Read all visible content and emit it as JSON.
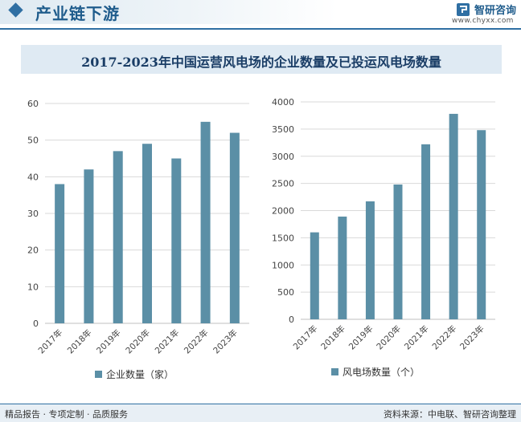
{
  "header": {
    "title": "产业链下游",
    "brand_name": "智研咨询",
    "brand_url": "www.chyxx.com"
  },
  "chart_title": "2017-2023年中国运营风电场的企业数量及已投运风电场数量",
  "footer": {
    "left": "精品报告 · 专项定制 · 品质服务",
    "right": "资料来源：中电联、智研咨询整理"
  },
  "colors": {
    "bar": "#5b8fa6",
    "accent": "#2f6fa3",
    "grid": "#d9d9d9"
  },
  "chart_data": [
    {
      "type": "bar",
      "title": "",
      "categories": [
        "2017年",
        "2018年",
        "2019年",
        "2020年",
        "2021年",
        "2022年",
        "2023年"
      ],
      "series": [
        {
          "name": "企业数量（家）",
          "values": [
            38,
            42,
            47,
            49,
            45,
            55,
            52
          ]
        }
      ],
      "ylim": [
        0,
        60
      ],
      "yticks": [
        0,
        10,
        20,
        30,
        40,
        50,
        60
      ],
      "grid": true,
      "legend": "bottom"
    },
    {
      "type": "bar",
      "title": "",
      "categories": [
        "2017年",
        "2018年",
        "2019年",
        "2020年",
        "2021年",
        "2022年",
        "2023年"
      ],
      "series": [
        {
          "name": "风电场数量（个）",
          "values": [
            1600,
            1890,
            2170,
            2480,
            3220,
            3780,
            3480
          ]
        }
      ],
      "ylim": [
        0,
        4000
      ],
      "yticks": [
        0,
        500,
        1000,
        1500,
        2000,
        2500,
        3000,
        3500,
        4000
      ],
      "grid": true,
      "legend": "bottom"
    }
  ]
}
